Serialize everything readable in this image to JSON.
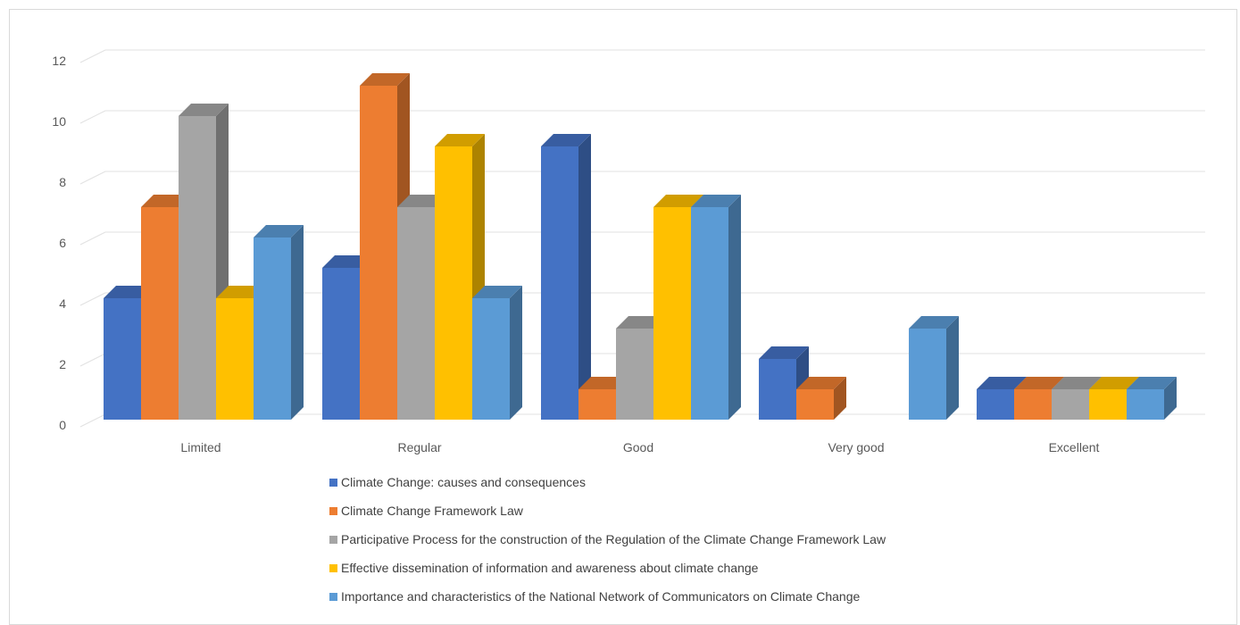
{
  "chart_data": {
    "type": "bar",
    "categories": [
      "Limited",
      "Regular",
      "Good",
      "Very good",
      "Excellent"
    ],
    "ylim": [
      0,
      12
    ],
    "yticks": [
      0,
      2,
      4,
      6,
      8,
      10,
      12
    ],
    "grid": true,
    "legend_position": "bottom",
    "series": [
      {
        "name": "Climate Change: causes and consequences",
        "color": "#4472c4",
        "values": [
          4,
          5,
          9,
          2,
          1
        ]
      },
      {
        "name": "Climate Change Framework Law",
        "color": "#ed7d31",
        "values": [
          7,
          11,
          1,
          1,
          1
        ]
      },
      {
        "name": "Participative Process for the construction of the Regulation of the Climate Change Framework Law",
        "color": "#a5a5a5",
        "values": [
          10,
          7,
          3,
          0,
          1
        ]
      },
      {
        "name": "Effective dissemination of information and awareness about climate change",
        "color": "#ffc000",
        "values": [
          4,
          9,
          7,
          0,
          1
        ]
      },
      {
        "name": "Importance and characteristics of the National Network of Communicators on Climate Change",
        "color": "#5b9bd5",
        "values": [
          6,
          4,
          7,
          3,
          1
        ]
      }
    ]
  }
}
